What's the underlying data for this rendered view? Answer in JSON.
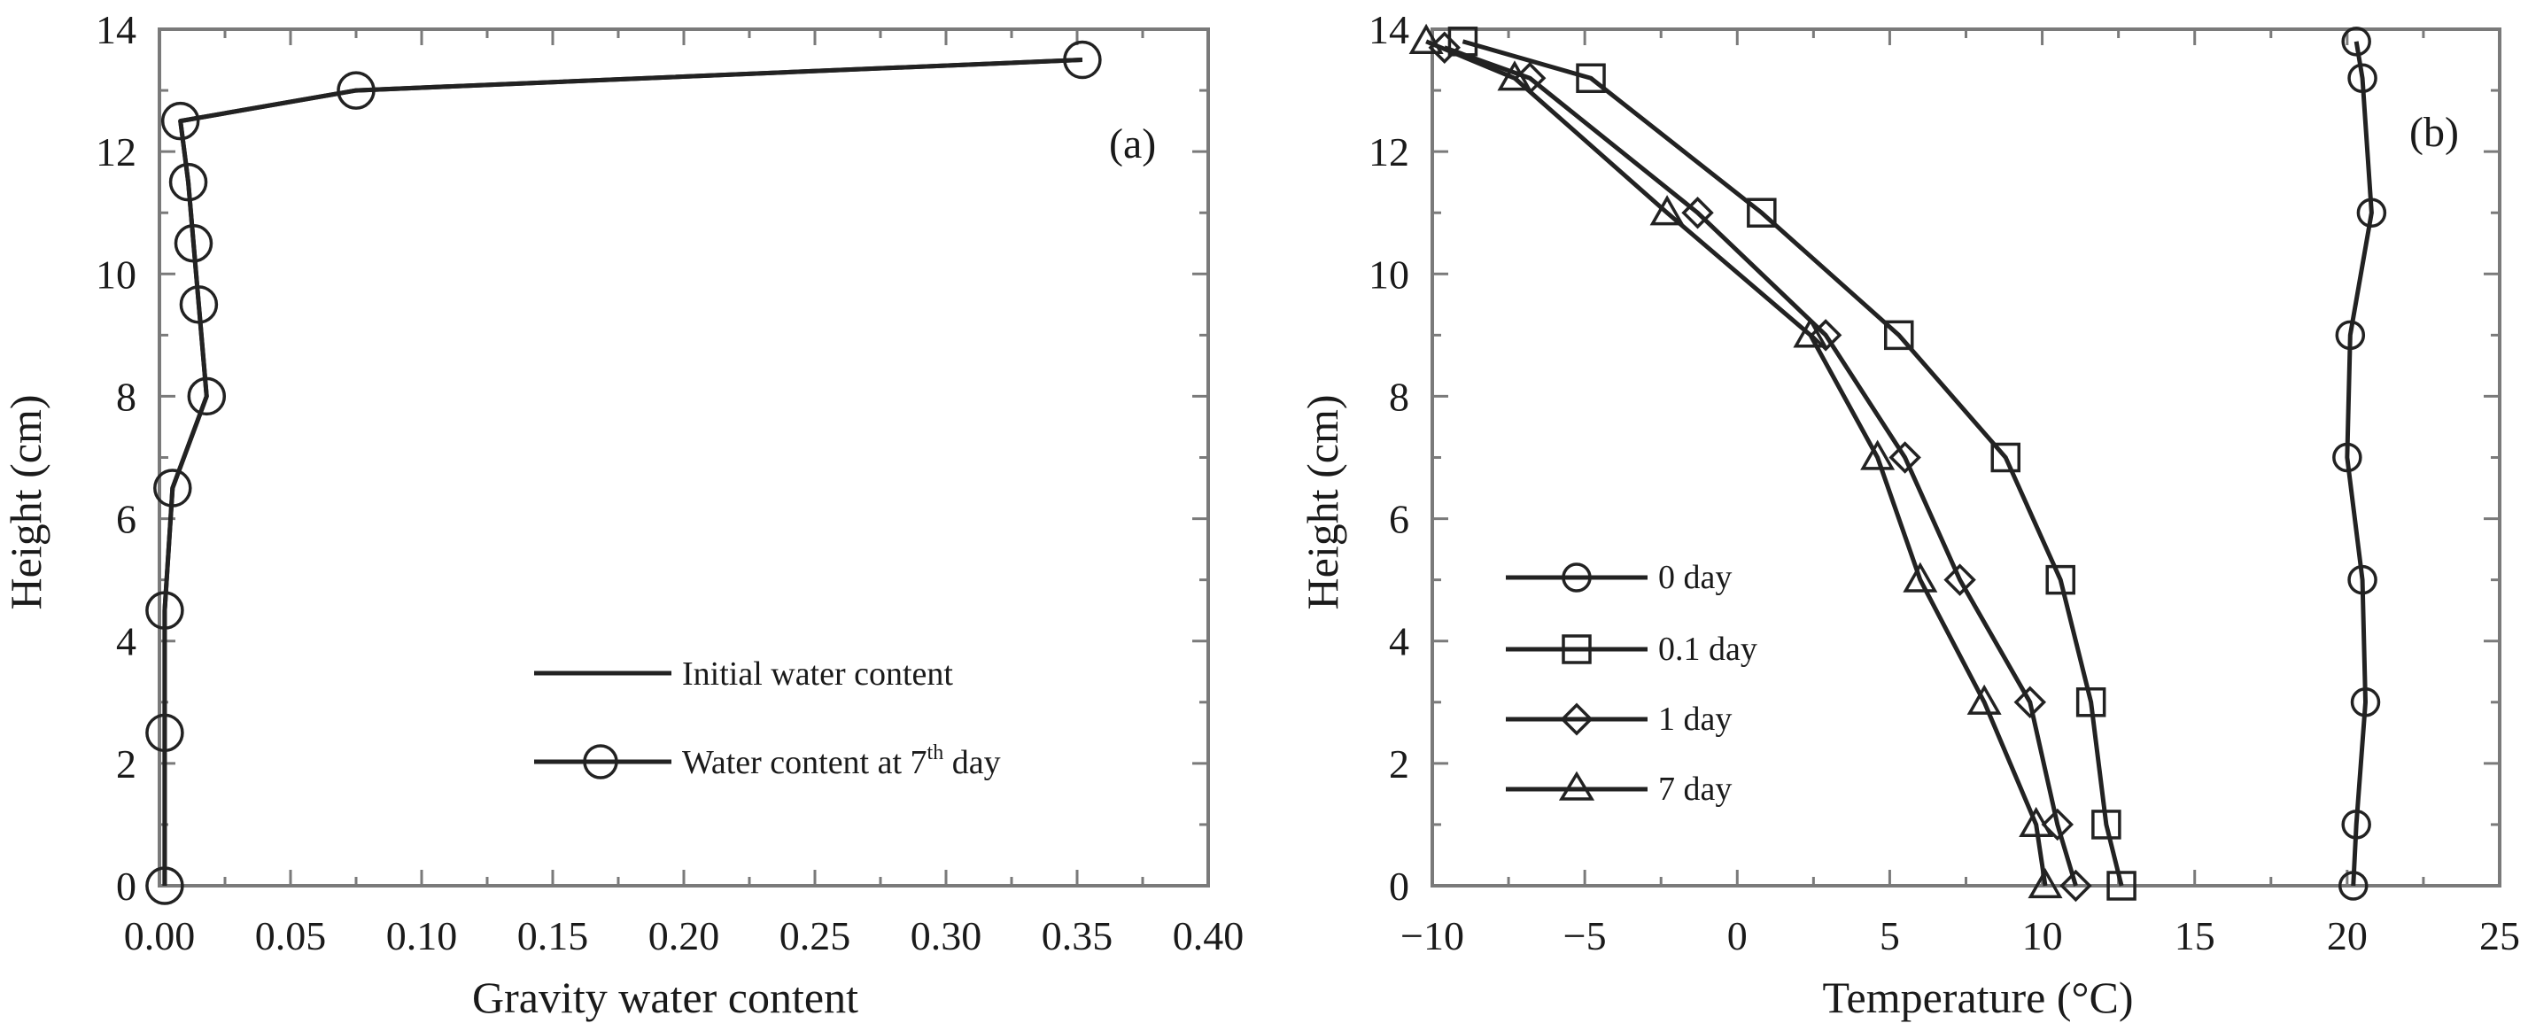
{
  "chart_data": [
    {
      "type": "line",
      "panel_label": "(a)",
      "xlabel": "Gravity water content",
      "ylabel": "Height (cm)",
      "xlim": [
        0.0,
        0.4
      ],
      "ylim": [
        0,
        14
      ],
      "xticks": [
        "0.00",
        "0.05",
        "0.10",
        "0.15",
        "0.20",
        "0.25",
        "0.30",
        "0.35",
        "0.40"
      ],
      "xtick_values": [
        0.0,
        0.05,
        0.1,
        0.15,
        0.2,
        0.25,
        0.3,
        0.35,
        0.4
      ],
      "yticks": [
        "0",
        "2",
        "4",
        "6",
        "8",
        "10",
        "12",
        "14"
      ],
      "ytick_values": [
        0,
        2,
        4,
        6,
        8,
        10,
        12,
        14
      ],
      "legend_position": "bottom-right",
      "series": [
        {
          "name": "Initial water content",
          "marker": "none",
          "x": [
            0.002,
            0.002,
            0.002,
            0.005,
            0.018,
            0.015,
            0.013,
            0.011,
            0.008,
            0.075,
            0.352
          ],
          "y": [
            0,
            2.5,
            4.5,
            6.5,
            8,
            9.5,
            10.5,
            11.5,
            12.5,
            13.0,
            13.5
          ]
        },
        {
          "name_main": "Water content at 7",
          "name_sup": "th",
          "name_tail": " day",
          "marker": "circle",
          "x": [
            0.002,
            0.002,
            0.002,
            0.005,
            0.018,
            0.015,
            0.013,
            0.011,
            0.008,
            0.075,
            0.352
          ],
          "y": [
            0,
            2.5,
            4.5,
            6.5,
            8,
            9.5,
            10.5,
            11.5,
            12.5,
            13.0,
            13.5
          ]
        }
      ]
    },
    {
      "type": "line",
      "panel_label": "(b)",
      "xlabel": "Temperature (°C)",
      "ylabel": "Height (cm)",
      "xlim": [
        -10,
        25
      ],
      "ylim": [
        0,
        14
      ],
      "xticks": [
        "−10",
        "−5",
        "0",
        "5",
        "10",
        "15",
        "20",
        "25"
      ],
      "xtick_values": [
        -10,
        -5,
        0,
        5,
        10,
        15,
        20,
        25
      ],
      "yticks": [
        "0",
        "2",
        "4",
        "6",
        "8",
        "10",
        "12",
        "14"
      ],
      "ytick_values": [
        0,
        2,
        4,
        6,
        8,
        10,
        12,
        14
      ],
      "legend_position": "bottom-left",
      "series": [
        {
          "name": "0 day",
          "marker": "circle",
          "x": [
            20.2,
            20.3,
            20.6,
            20.5,
            20.0,
            20.1,
            20.8,
            20.5,
            20.3
          ],
          "y": [
            0,
            1,
            3,
            5,
            7,
            9,
            11,
            13.2,
            13.8
          ]
        },
        {
          "name": "0.1 day",
          "marker": "square",
          "x": [
            12.6,
            12.1,
            11.6,
            10.6,
            8.8,
            5.3,
            0.8,
            -4.8,
            -9.0
          ],
          "y": [
            0,
            1,
            3,
            5,
            7,
            9,
            11,
            13.2,
            13.8
          ]
        },
        {
          "name": "1 day",
          "marker": "diamond",
          "x": [
            11.1,
            10.5,
            9.6,
            7.3,
            5.5,
            2.9,
            -1.3,
            -6.8,
            -9.6
          ],
          "y": [
            0,
            1,
            3,
            5,
            7,
            9,
            11,
            13.2,
            13.7
          ]
        },
        {
          "name": "7 day",
          "marker": "triangle",
          "x": [
            10.1,
            9.8,
            8.1,
            6.0,
            4.6,
            2.4,
            -2.3,
            -7.3,
            -10.2
          ],
          "y": [
            0,
            1,
            3,
            5,
            7,
            9,
            11,
            13.2,
            13.8
          ]
        }
      ]
    }
  ]
}
